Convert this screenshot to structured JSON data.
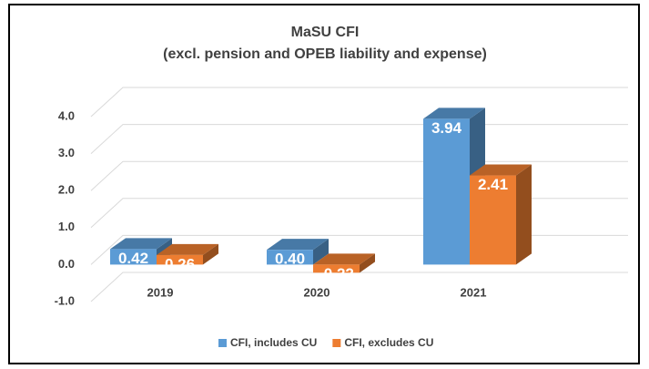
{
  "chart_data": {
    "type": "bar3d",
    "title": "MaSU CFI",
    "subtitle": "(excl. pension and OPEB liability and expense)",
    "categories": [
      "2019",
      "2020",
      "2021"
    ],
    "series": [
      {
        "name": "CFI, includes CU",
        "color": "#5b9bd5",
        "values": [
          0.42,
          0.4,
          3.94
        ],
        "value_labels": [
          "0.42",
          "0.40",
          "3.94"
        ]
      },
      {
        "name": "CFI, excludes CU",
        "color": "#ed7d31",
        "values": [
          0.26,
          -0.22,
          2.41
        ],
        "value_labels": [
          "0.26",
          "-0.22",
          "2.41"
        ]
      }
    ],
    "ylim": [
      -1,
      4
    ],
    "yticks": [
      {
        "value": -1,
        "label": "-1.0"
      },
      {
        "value": 0,
        "label": "0.0"
      },
      {
        "value": 1,
        "label": "1.0"
      },
      {
        "value": 2,
        "label": "2.0"
      },
      {
        "value": 3,
        "label": "3.0"
      },
      {
        "value": 4,
        "label": "4.0"
      }
    ],
    "grid": true,
    "legend": "bottom"
  }
}
